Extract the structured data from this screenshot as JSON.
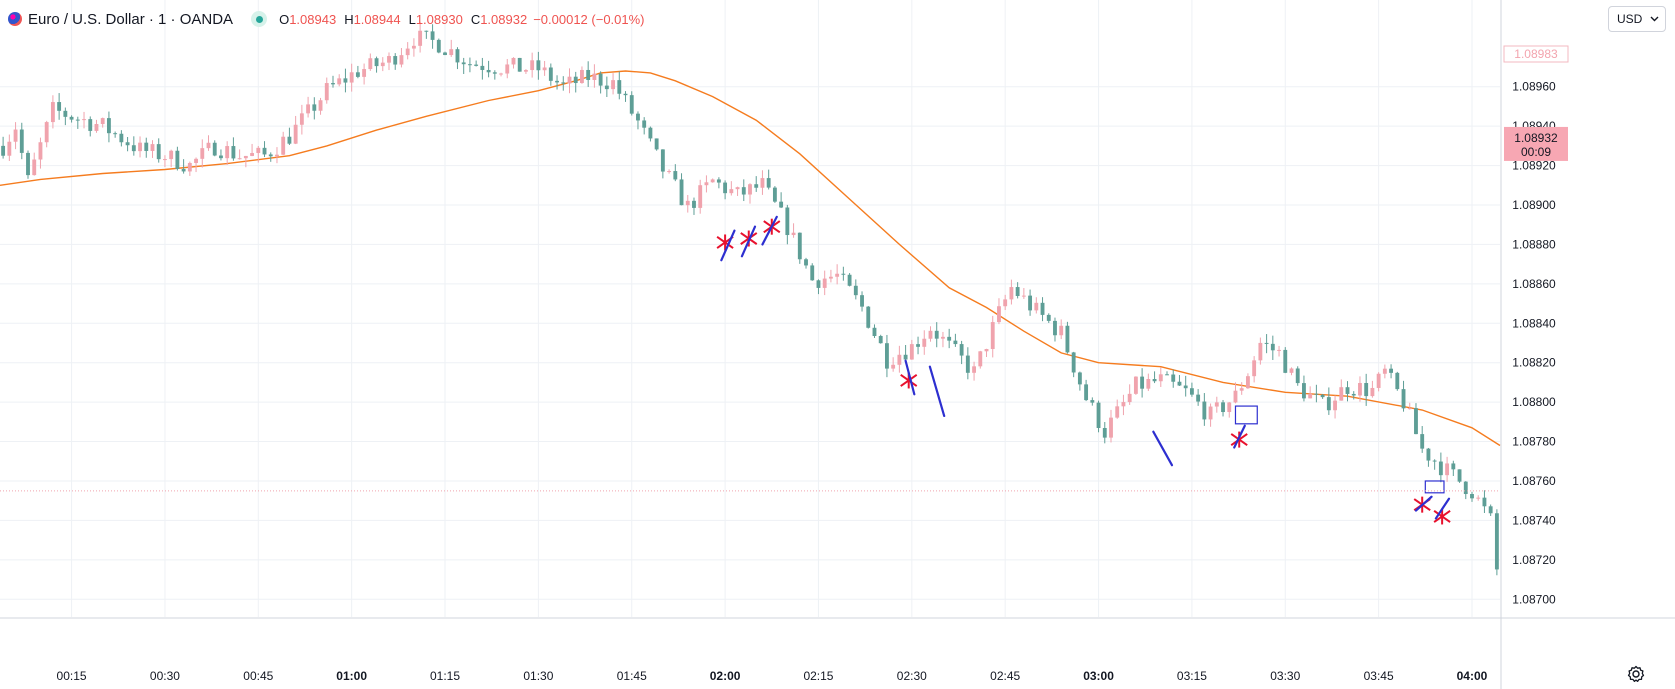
{
  "header": {
    "symbol_title": "Euro / U.S. Dollar · 1 · OANDA",
    "ohlc": {
      "o_label": "O",
      "o_value": "1.08943",
      "h_label": "H",
      "h_value": "1.08944",
      "l_label": "L",
      "l_value": "1.08930",
      "c_label": "C",
      "c_value": "1.08932",
      "change": "−0.00012 (−0.01%)"
    },
    "currency": "USD",
    "currency_icon": "chevron-down-icon",
    "settings_icon": "gear-icon"
  },
  "colors": {
    "up": "#f0a3ad",
    "down": "#5e9e96",
    "ma": "#f57c1f",
    "marker_cross": "#e8112d",
    "marker_stroke": "#2d2fd0",
    "grid": "#eef1f5"
  },
  "chart_data": {
    "type": "candlestick",
    "interval": "1 minute",
    "price_axis": {
      "ticks": [
        "1.08960",
        "1.08940",
        "1.08920",
        "1.08900",
        "1.08880",
        "1.08860",
        "1.08840",
        "1.08820",
        "1.08800",
        "1.08780",
        "1.08760",
        "1.08740",
        "1.08720",
        "1.08700"
      ],
      "range": [
        1.08691,
        1.09004
      ],
      "current_price": "1.08932",
      "countdown": "00:09",
      "high_label": "1.08983"
    },
    "time_axis": {
      "ticks": [
        "00:15",
        "00:30",
        "00:45",
        "01:00",
        "01:15",
        "01:30",
        "01:45",
        "02:00",
        "02:15",
        "02:30",
        "02:45",
        "03:00",
        "03:15",
        "03:30",
        "03:45",
        "04:00"
      ],
      "bold_ticks": [
        "01:00",
        "02:00",
        "03:00",
        "04:00"
      ],
      "range_minutes": [
        3.5,
        244.5
      ]
    },
    "series": [
      {
        "name": "",
        "kind": "moving-average",
        "points": [
          [
            3.5,
            1.0891
          ],
          [
            10,
            1.08913
          ],
          [
            20,
            1.08916
          ],
          [
            30,
            1.08918
          ],
          [
            40,
            1.08921
          ],
          [
            50,
            1.08925
          ],
          [
            56,
            1.0893
          ],
          [
            64,
            1.08938
          ],
          [
            72,
            1.08945
          ],
          [
            82,
            1.08953
          ],
          [
            90,
            1.08958
          ],
          [
            96,
            1.08963
          ],
          [
            100,
            1.08967
          ],
          [
            104,
            1.08968
          ],
          [
            108,
            1.08967
          ],
          [
            112,
            1.08963
          ],
          [
            118,
            1.08955
          ],
          [
            125,
            1.08943
          ],
          [
            132,
            1.08926
          ],
          [
            140,
            1.08903
          ],
          [
            148,
            1.0888
          ],
          [
            156,
            1.08858
          ],
          [
            162,
            1.08848
          ],
          [
            168,
            1.08836
          ],
          [
            174,
            1.08825
          ],
          [
            180,
            1.0882
          ],
          [
            190,
            1.08818
          ],
          [
            200,
            1.0881
          ],
          [
            210,
            1.08805
          ],
          [
            220,
            1.08803
          ],
          [
            232,
            1.08796
          ],
          [
            240,
            1.08787
          ],
          [
            244.5,
            1.08778
          ]
        ]
      }
    ],
    "candles_keyframes": [
      [
        4,
        1.0893
      ],
      [
        6,
        1.0894
      ],
      [
        8,
        1.08912
      ],
      [
        10,
        1.0893
      ],
      [
        12,
        1.08948
      ],
      [
        16,
        1.08944
      ],
      [
        20,
        1.0894
      ],
      [
        26,
        1.08928
      ],
      [
        30,
        1.08925
      ],
      [
        34,
        1.0892
      ],
      [
        38,
        1.0893
      ],
      [
        42,
        1.08925
      ],
      [
        46,
        1.08925
      ],
      [
        50,
        1.08935
      ],
      [
        56,
        1.08958
      ],
      [
        61,
        1.08968
      ],
      [
        66,
        1.08973
      ],
      [
        70,
        1.08985
      ],
      [
        74,
        1.08982
      ],
      [
        79,
        1.08972
      ],
      [
        84,
        1.0897
      ],
      [
        90,
        1.08969
      ],
      [
        94,
        1.0896
      ],
      [
        98,
        1.08965
      ],
      [
        102,
        1.08962
      ],
      [
        106,
        1.08942
      ],
      [
        110,
        1.08918
      ],
      [
        114,
        1.08899
      ],
      [
        118,
        1.08912
      ],
      [
        122,
        1.08905
      ],
      [
        126,
        1.0891
      ],
      [
        130,
        1.08889
      ],
      [
        134,
        1.08862
      ],
      [
        138,
        1.08864
      ],
      [
        142,
        1.08848
      ],
      [
        146,
        1.08822
      ],
      [
        150,
        1.08828
      ],
      [
        153,
        1.08838
      ],
      [
        156,
        1.08828
      ],
      [
        160,
        1.08815
      ],
      [
        164,
        1.08845
      ],
      [
        166,
        1.08858
      ],
      [
        170,
        1.08846
      ],
      [
        174,
        1.08835
      ],
      [
        178,
        1.08802
      ],
      [
        181,
        1.08785
      ],
      [
        186,
        1.08808
      ],
      [
        190,
        1.08811
      ],
      [
        194,
        1.08805
      ],
      [
        198,
        1.08793
      ],
      [
        202,
        1.08803
      ],
      [
        204,
        1.08815
      ],
      [
        206,
        1.0883
      ],
      [
        209,
        1.08825
      ],
      [
        212,
        1.08808
      ],
      [
        216,
        1.08798
      ],
      [
        220,
        1.08808
      ],
      [
        224,
        1.08806
      ],
      [
        226,
        1.08815
      ],
      [
        229,
        1.088
      ],
      [
        232,
        1.08776
      ],
      [
        236,
        1.08765
      ],
      [
        240,
        1.08755
      ],
      [
        243,
        1.0874
      ],
      [
        244.5,
        1.08702
      ]
    ],
    "annotations": [
      {
        "type": "cross",
        "t": 120.0,
        "p": 1.08881
      },
      {
        "type": "cross",
        "t": 123.8,
        "p": 1.08883
      },
      {
        "type": "cross",
        "t": 127.5,
        "p": 1.08889
      },
      {
        "type": "cross",
        "t": 149.5,
        "p": 1.08811
      },
      {
        "type": "cross",
        "t": 202.6,
        "p": 1.08781
      },
      {
        "type": "cross",
        "t": 232.0,
        "p": 1.08748
      },
      {
        "type": "cross",
        "t": 235.2,
        "p": 1.08742
      },
      {
        "type": "stroke",
        "t1": 119.4,
        "p1": 1.08872,
        "t2": 121.5,
        "p2": 1.08887
      },
      {
        "type": "stroke",
        "t1": 122.7,
        "p1": 1.08874,
        "t2": 124.8,
        "p2": 1.08889
      },
      {
        "type": "stroke",
        "t1": 126.0,
        "p1": 1.0888,
        "t2": 128.3,
        "p2": 1.08894
      },
      {
        "type": "stroke",
        "t1": 149.0,
        "p1": 1.08821,
        "t2": 150.4,
        "p2": 1.08804
      },
      {
        "type": "stroke",
        "t1": 152.9,
        "p1": 1.08818,
        "t2": 155.2,
        "p2": 1.08793
      },
      {
        "type": "stroke",
        "t1": 188.8,
        "p1": 1.08785,
        "t2": 191.8,
        "p2": 1.08768
      },
      {
        "type": "stroke",
        "t1": 201.8,
        "p1": 1.08777,
        "t2": 203.5,
        "p2": 1.08788
      },
      {
        "type": "stroke",
        "t1": 231.0,
        "p1": 1.08745,
        "t2": 233.5,
        "p2": 1.08752
      },
      {
        "type": "stroke",
        "t1": 234.2,
        "p1": 1.08741,
        "t2": 236.3,
        "p2": 1.08751
      },
      {
        "type": "box",
        "t1": 202.0,
        "p1": 1.08798,
        "t2": 205.5,
        "p2": 1.08789
      },
      {
        "type": "box",
        "t1": 232.5,
        "p1": 1.0876,
        "t2": 235.5,
        "p2": 1.08754
      }
    ]
  }
}
